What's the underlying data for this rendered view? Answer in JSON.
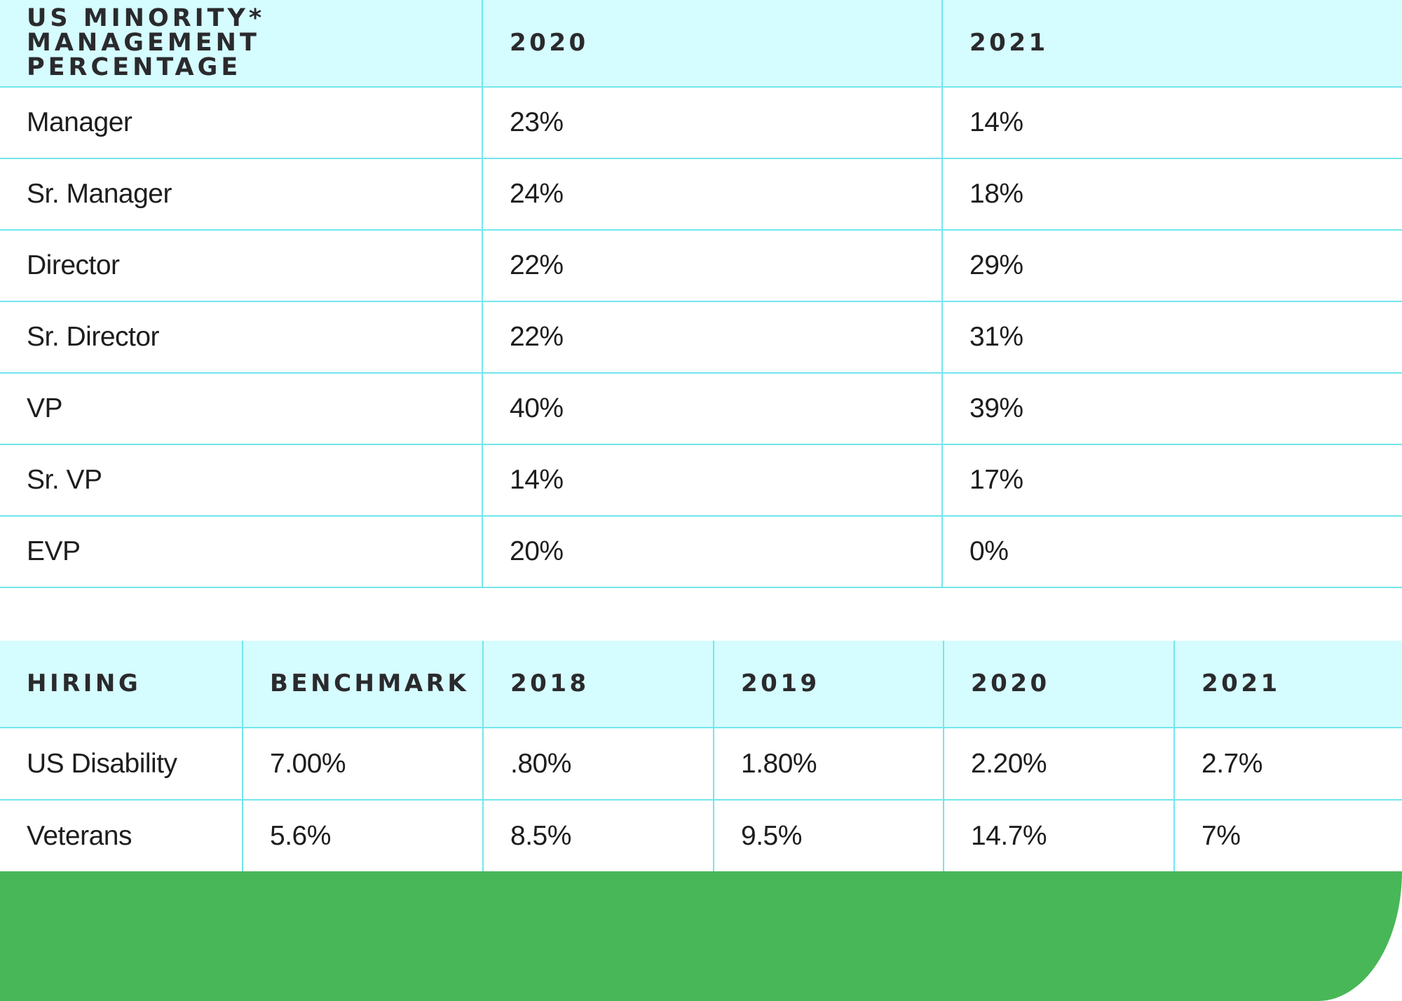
{
  "management_table": {
    "headers": [
      "US MINORITY* MANAGEMENT PERCENTAGE",
      "2020",
      "2021"
    ],
    "rows": [
      {
        "label": "Manager",
        "y2020": "23%",
        "y2021": "14%"
      },
      {
        "label": "Sr. Manager",
        "y2020": "24%",
        "y2021": "18%"
      },
      {
        "label": "Director",
        "y2020": "22%",
        "y2021": "29%"
      },
      {
        "label": "Sr. Director",
        "y2020": "22%",
        "y2021": "31%"
      },
      {
        "label": "VP",
        "y2020": "40%",
        "y2021": "39%"
      },
      {
        "label": "Sr. VP",
        "y2020": "14%",
        "y2021": "17%"
      },
      {
        "label": "EVP",
        "y2020": "20%",
        "y2021": "0%"
      }
    ]
  },
  "hiring_table": {
    "headers": [
      "HIRING",
      "BENCHMARK",
      "2018",
      "2019",
      "2020",
      "2021"
    ],
    "rows": [
      {
        "label": "US Disability",
        "benchmark": "7.00%",
        "y2018": ".80%",
        "y2019": "1.80%",
        "y2020": "2.20%",
        "y2021": "2.7%"
      },
      {
        "label": "Veterans",
        "benchmark": "5.6%",
        "y2018": "8.5%",
        "y2019": "9.5%",
        "y2020": "14.7%",
        "y2021": "7%"
      }
    ]
  },
  "colors": {
    "header_bg": "#d5fcfe",
    "grid_line": "#73e6ee",
    "footer_band": "#48b757"
  }
}
